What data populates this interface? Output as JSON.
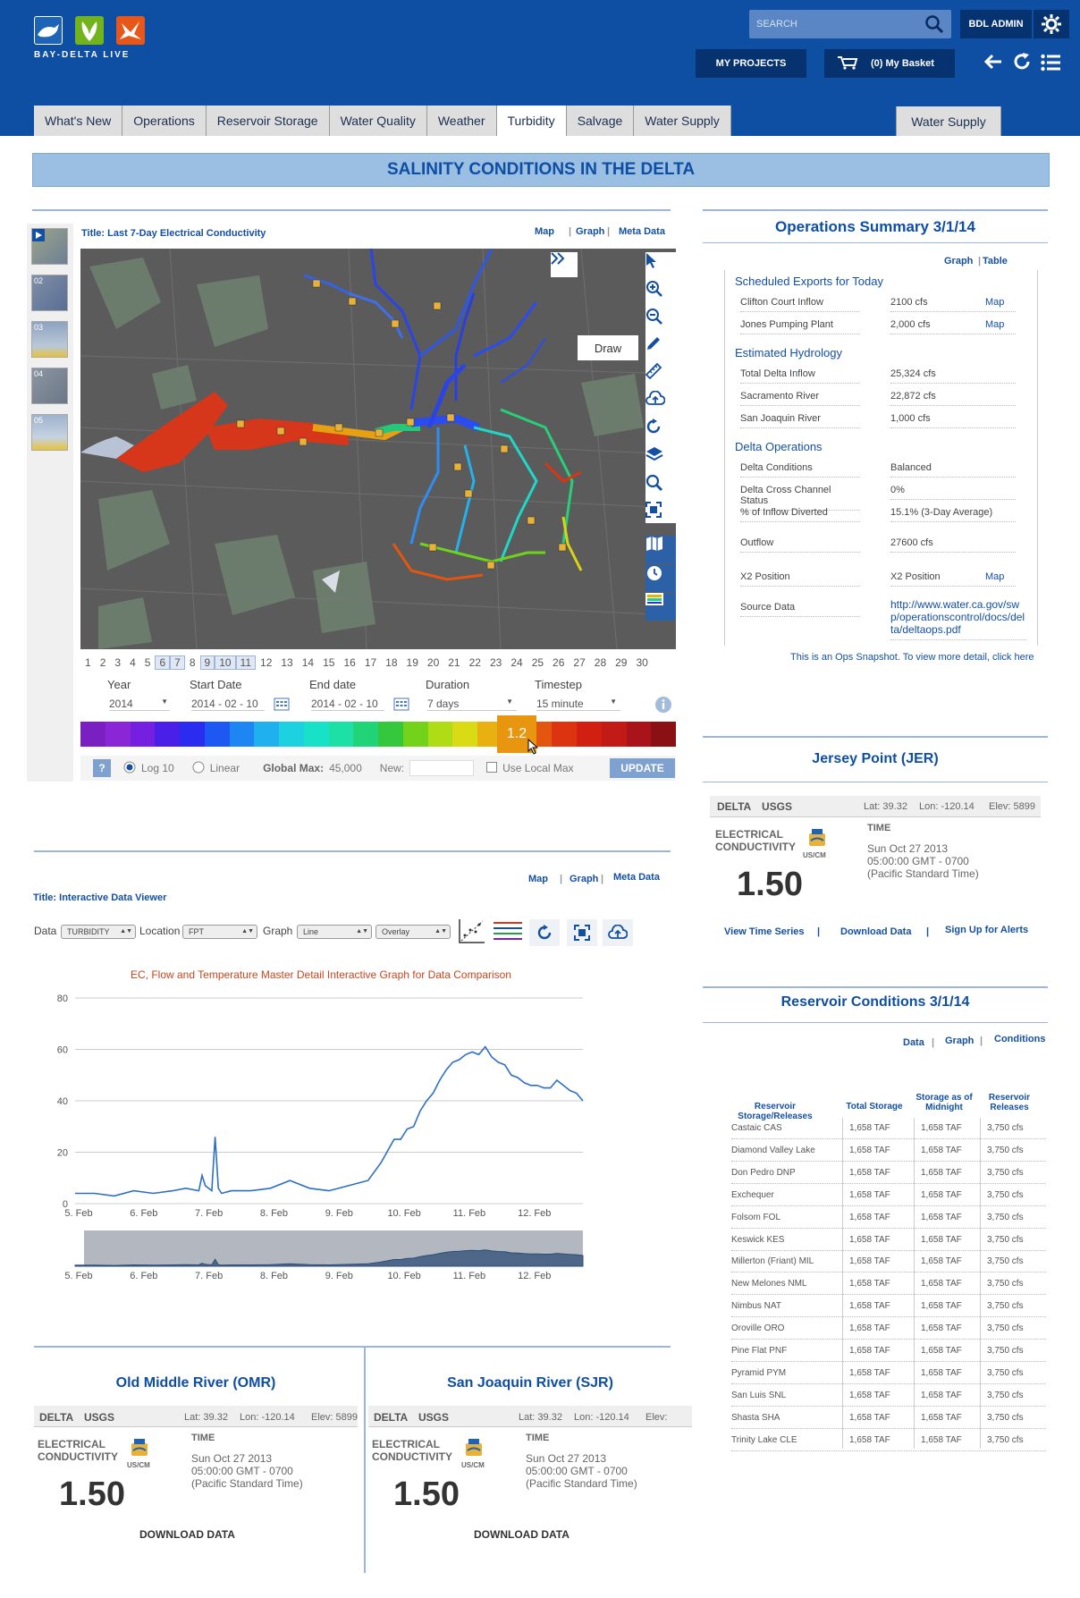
{
  "brand": {
    "name": "BAY-DELTA LIVE"
  },
  "header": {
    "search_placeholder": "SEARCH",
    "user_label": "BDL ADMIN",
    "projects_label": "MY PROJECTS",
    "basket_label": "(0) My Basket"
  },
  "tabs": [
    "What's New",
    "Operations",
    "Reservoir Storage",
    "Water Quality",
    "Weather",
    "Turbidity",
    "Salvage",
    "Water Supply"
  ],
  "active_tab": "Turbidity",
  "tab_right": "Water Supply",
  "banner": "SALINITY CONDITIONS IN THE DELTA",
  "map_panel": {
    "title": "Title: Last 7-Day Electrical Conductivity",
    "links": {
      "map": "Map",
      "graph": "Graph",
      "meta": "Meta Data"
    },
    "thumbs": [
      "02",
      "03",
      "04",
      "05"
    ],
    "draw_tip": "Draw",
    "days": [
      "1",
      "2",
      "3",
      "4",
      "5",
      "6",
      "7",
      "8",
      "9",
      "10",
      "11",
      "12",
      "13",
      "14",
      "15",
      "16",
      "17",
      "18",
      "19",
      "20",
      "21",
      "22",
      "23",
      "24",
      "25",
      "26",
      "27",
      "28",
      "29",
      "30"
    ],
    "selected_days": [
      "6",
      "7",
      "9",
      "10",
      "11"
    ],
    "controls": {
      "year_label": "Year",
      "year": "2014",
      "start_label": "Start Date",
      "start": "2014 - 02 - 10",
      "end_label": "End date",
      "end": "2014 - 02 - 10",
      "duration_label": "Duration",
      "duration": "7 days",
      "timestep_label": "Timestep",
      "timestep": "15 minute"
    },
    "marker_value": "1.2",
    "colors": [
      "#7a1fc2",
      "#8a26d6",
      "#7520e0",
      "#4a1fe8",
      "#2a2df0",
      "#1e58f3",
      "#1d86f2",
      "#1fb0ee",
      "#1ed1e1",
      "#17e2c7",
      "#1de0a6",
      "#22d478",
      "#35c83c",
      "#73d21a",
      "#b0dc16",
      "#dadb14",
      "#e8b010",
      "#e57e0e",
      "#e2560f",
      "#dc3410",
      "#d11f12",
      "#c11a17",
      "#a8141a",
      "#8a1014"
    ],
    "scale": {
      "log": "Log 10",
      "linear": "Linear",
      "global_max_label": "Global Max:",
      "global_max": "45,000",
      "new_label": "New:",
      "local_max": "Use Local Max",
      "update": "UPDATE",
      "help": "?"
    }
  },
  "ops": {
    "title": "Operations Summary 3/1/14",
    "links": {
      "graph": "Graph",
      "table": "Table"
    },
    "sections": [
      {
        "name": "Scheduled Exports for Today",
        "rows": [
          {
            "k": "Clifton Court Inflow",
            "v": "2100 cfs",
            "m": "Map"
          },
          {
            "k": "Jones Pumping Plant",
            "v": "2,000 cfs",
            "m": "Map"
          }
        ]
      },
      {
        "name": "Estimated Hydrology",
        "rows": [
          {
            "k": "Total Delta Inflow",
            "v": "25,324 cfs"
          },
          {
            "k": "Sacramento River",
            "v": "22,872 cfs"
          },
          {
            "k": "San Joaquin River",
            "v": "1,000 cfs"
          }
        ]
      },
      {
        "name": "Delta Operations",
        "rows": [
          {
            "k": "Delta Conditions",
            "v": "Balanced"
          },
          {
            "k": "Delta Cross Channel Status",
            "v": "0%"
          },
          {
            "k": "% of Inflow Diverted",
            "v": "15.1% (3-Day Average)"
          },
          {
            "k": "Outflow",
            "v": "27600 cfs"
          },
          {
            "k": "X2 Position",
            "v": "X2 Position",
            "m": "Map"
          },
          {
            "k": "Source Data",
            "v": "http://www.water.ca.gov/swp/operationscontrol/docs/delta/deltaops.pdf"
          }
        ]
      }
    ],
    "footnote": "This is an Ops Snapshot.  To view more detail, click here"
  },
  "stations": [
    {
      "id": "jer",
      "title": "Jersey Point (JER)",
      "org": "DELTA",
      "agency": "USGS",
      "lat": "Lat: 39.32",
      "lon": "Lon: -120.14",
      "elev": "Elev: 5899",
      "param1": "ELECTRICAL",
      "param2": "CONDUCTIVITY",
      "unit": "US/CM",
      "time_label": "TIME",
      "t1": "Sun  Oct 27 2013",
      "t2": "05:00:00 GMT - 0700",
      "t3": "(Pacific Standard Time)",
      "value": "1.50",
      "actions": [
        "View Time Series",
        "Download Data",
        "Sign Up for Alerts"
      ]
    },
    {
      "id": "omr",
      "title": "Old Middle River (OMR)",
      "org": "DELTA",
      "agency": "USGS",
      "lat": "Lat: 39.32",
      "lon": "Lon: -120.14",
      "elev": "Elev: 5899",
      "param1": "ELECTRICAL",
      "param2": "CONDUCTIVITY",
      "unit": "US/CM",
      "time_label": "TIME",
      "t1": "Sun  Oct 27 2013",
      "t2": "05:00:00 GMT - 0700",
      "t3": "(Pacific Standard Time)",
      "value": "1.50",
      "download": "DOWNLOAD DATA"
    },
    {
      "id": "sjr",
      "title": "San Joaquin River (SJR)",
      "org": "DELTA",
      "agency": "USGS",
      "lat": "Lat: 39.32",
      "lon": "Lon: -120.14",
      "elev": "Elev:",
      "param1": "ELECTRICAL",
      "param2": "CONDUCTIVITY",
      "unit": "US/CM",
      "time_label": "TIME",
      "t1": "Sun  Oct 27 2013",
      "t2": "05:00:00 GMT - 0700",
      "t3": "(Pacific Standard Time)",
      "value": "1.50",
      "download": "DOWNLOAD DATA"
    }
  ],
  "viewer": {
    "title": "Title: Interactive Data Viewer",
    "links": {
      "map": "Map",
      "graph": "Graph",
      "meta": "Meta Data"
    },
    "data_label": "Data",
    "data_value": "TURBIDITY",
    "location_label": "Location",
    "location_value": "FPT",
    "graph_label": "Graph",
    "graph_value": "Line",
    "overlay_value": "Overlay",
    "chart_title": "EC, Flow and Temperature Master Detail Interactive Graph for Data Comparison"
  },
  "chart_data": {
    "type": "line",
    "title": "EC, Flow and Temperature Master Detail Interactive Graph for Data Comparison",
    "xlabel": "",
    "ylabel": "",
    "x_ticks": [
      "5. Feb",
      "6. Feb",
      "7. Feb",
      "8. Feb",
      "9. Feb",
      "10. Feb",
      "11. Feb",
      "12. Feb"
    ],
    "y_ticks": [
      0,
      20,
      40,
      60,
      80
    ],
    "ylim": [
      0,
      80
    ],
    "xlim": [
      0,
      7.8
    ],
    "series": [
      {
        "x": [
          0,
          0.3,
          0.6,
          0.9,
          1.2,
          1.5,
          1.7,
          1.9,
          1.95,
          2.0,
          2.1,
          2.15,
          2.2,
          2.25,
          2.4,
          2.7,
          3.0,
          3.3,
          3.6,
          3.9,
          4.2,
          4.5,
          4.7,
          4.9,
          5.0,
          5.1,
          5.2,
          5.3,
          5.4,
          5.5,
          5.6,
          5.7,
          5.8,
          5.9,
          6.0,
          6.1,
          6.2,
          6.3,
          6.4,
          6.5,
          6.6,
          6.7,
          6.8,
          6.9,
          7.0,
          7.1,
          7.2,
          7.3,
          7.4,
          7.5,
          7.6,
          7.7,
          7.8
        ],
        "y": [
          4,
          4,
          3,
          5,
          4,
          5,
          6,
          5,
          11,
          7,
          5,
          26,
          6,
          4,
          5,
          5,
          6,
          9,
          6,
          5,
          7,
          9,
          16,
          25,
          25,
          29,
          30,
          36,
          40,
          43,
          48,
          52,
          55,
          56,
          58,
          59,
          58,
          61,
          57,
          55,
          54,
          50,
          49,
          47,
          46,
          46,
          45,
          45,
          48,
          46,
          44,
          43,
          40
        ]
      }
    ]
  },
  "reservoir": {
    "title": "Reservoir Conditions 3/1/14",
    "links": {
      "data": "Data",
      "graph": "Graph",
      "conditions": "Conditions"
    },
    "headers": [
      "Reservoir Storage/Releases",
      "Total Storage",
      "Storage as of Midnight",
      "Reservoir Releases"
    ],
    "rows": [
      [
        "Castaic  CAS",
        "1,658 TAF",
        "1,658 TAF",
        "3,750 cfs"
      ],
      [
        "Diamond Valley Lake",
        "1,658 TAF",
        "1,658 TAF",
        "3,750 cfs"
      ],
      [
        "Don Pedro  DNP",
        "1,658 TAF",
        "1,658 TAF",
        "3,750 cfs"
      ],
      [
        "Exchequer",
        "1,658 TAF",
        "1,658 TAF",
        "3,750 cfs"
      ],
      [
        "Folsom  FOL",
        "1,658 TAF",
        "1,658 TAF",
        "3,750 cfs"
      ],
      [
        "Keswick  KES",
        "1,658 TAF",
        "1,658 TAF",
        "3,750 cfs"
      ],
      [
        "Millerton (Friant)  MIL",
        "1,658 TAF",
        "1,658 TAF",
        "3,750 cfs"
      ],
      [
        "New Melones  NML",
        "1,658 TAF",
        "1,658 TAF",
        "3,750 cfs"
      ],
      [
        "Nimbus  NAT",
        "1,658 TAF",
        "1,658 TAF",
        "3,750 cfs"
      ],
      [
        "Oroville  ORO",
        "1,658 TAF",
        "1,658 TAF",
        "3,750 cfs"
      ],
      [
        "Pine Flat  PNF",
        "1,658 TAF",
        "1,658 TAF",
        "3,750 cfs"
      ],
      [
        "Pyramid  PYM",
        "1,658 TAF",
        "1,658 TAF",
        "3,750 cfs"
      ],
      [
        "San Luis  SNL",
        "1,658 TAF",
        "1,658 TAF",
        "3,750 cfs"
      ],
      [
        "Shasta  SHA",
        "1,658 TAF",
        "1,658 TAF",
        "3,750 cfs"
      ],
      [
        "Trinity Lake  CLE",
        "1,658 TAF",
        "1,658 TAF",
        "3,750 cfs"
      ]
    ]
  }
}
